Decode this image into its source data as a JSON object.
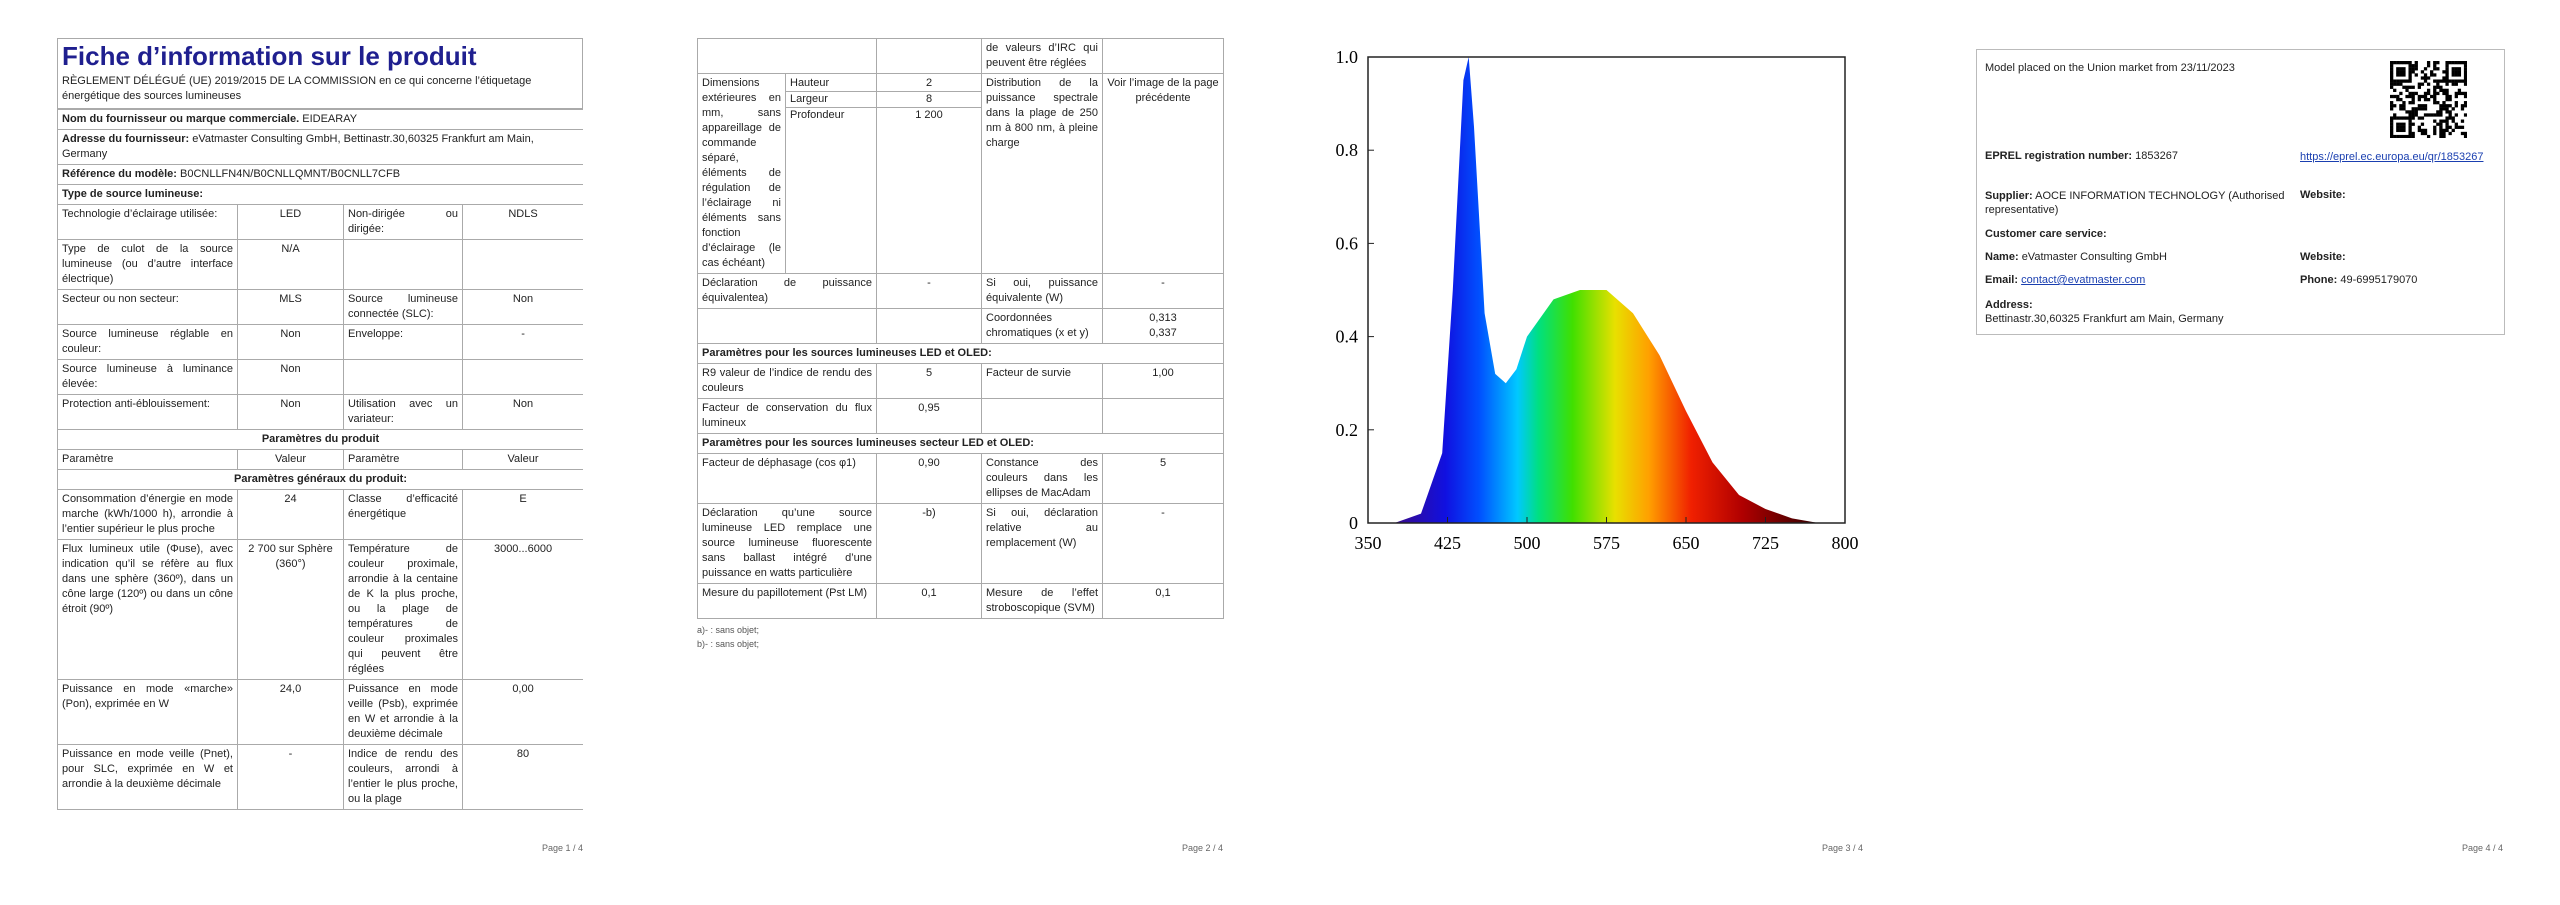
{
  "page1": {
    "title": "Fiche d’information sur le produit",
    "regulation": "RÈGLEMENT DÉLÉGUÉ (UE) 2019/2015 DE LA COMMISSION en ce qui concerne l’étiquetage énergétique des sources lumineuses",
    "table": [
      {
        "label": "Nom du fournisseur ou marque commerciale.",
        "value": "EIDEARAY"
      },
      {
        "label": "Adresse du fournisseur:",
        "value": "eVatmaster Consulting GmbH, Bettinastr.30,60325 Frankfurt am Main, Germany"
      },
      {
        "label": "Référence du modèle:",
        "value": "B0CNLLFN4N/B0CNLLQMNT/B0CNLL7CFB"
      },
      {
        "heading": "Type de source lumineuse:"
      },
      [
        "Technologie d’éclairage utilisée:",
        "LED",
        "Non-dirigée ou dirigée:",
        "NDLS"
      ],
      [
        "Type de culot de la source lumineuse (ou d’autre interface électrique)",
        "N/A",
        null,
        null
      ],
      [
        "Secteur ou non secteur:",
        "MLS",
        "Source lumineuse connectée (SLC):",
        "Non"
      ],
      [
        "Source lumineuse réglable en couleur:",
        "Non",
        "Enveloppe:",
        "-"
      ],
      [
        "Source lumineuse à luminance élevée:",
        "Non",
        null,
        null
      ],
      [
        "Protection anti-éblouissement:",
        "Non",
        "Utilisation avec un variateur:",
        "Non"
      ],
      {
        "center": "Paramètres du produit"
      },
      [
        "Paramètre",
        "Valeur",
        "Paramètre",
        "Valeur"
      ],
      {
        "center": "Paramètres généraux du produit:"
      },
      [
        "Consommation d’énergie en mode marche (kWh/1000 h), arrondie à l’entier supérieur le plus proche",
        "24",
        "Classe d’efficacité énergétique",
        "E"
      ],
      [
        "Flux lumineux utile (Φuse), avec indication qu’il se réfère au flux dans une sphère (360º), dans un cône large (120º) ou dans un cône étroit (90º)",
        "2 700 sur Sphère (360°)",
        "Température de couleur proximale, arrondie à la centaine de K la plus proche, ou la plage de températures de couleur proximales qui peuvent être réglées",
        "3000...6000"
      ],
      [
        "Puissance en mode «marche» (Pon), exprimée en W",
        "24,0",
        "Puissance en mode veille (Psb), exprimée en W et arrondie à la deuxième décimale",
        "0,00"
      ],
      [
        "Puissance en mode veille (Pnet), pour SLC, exprimée en W et arrondie à la deuxième décimale",
        "-",
        "Indice de rendu des couleurs, arrondi à l’entier le plus proche, ou la plage",
        "80"
      ]
    ],
    "footer": "Page 1 / 4"
  },
  "page2": {
    "table": [
      [
        null,
        null,
        "de valeurs d’IRC qui peuvent être réglées",
        null
      ],
      {
        "label": "Dimensions extérieures en mm, sans appareillage de commande séparé, éléments de régulation de l’éclairage ni éléments sans fonction d’éclairage (le cas échéant)",
        "dims": [
          [
            "Hauteur",
            "2"
          ],
          [
            "Largeur",
            "8"
          ],
          [
            "Profondeur",
            "1 200"
          ]
        ],
        "param": "Distribution de la puissance spectrale dans la plage de 250 nm à 800 nm, à pleine charge",
        "value": "Voir l’image de la page précédente"
      },
      [
        "Déclaration de puissance équivalentea)",
        "-",
        "Si oui, puissance équivalente (W)",
        "-"
      ],
      [
        null,
        null,
        "Coordonnées chromatiques (x et y)",
        [
          "0,313",
          "0,337"
        ]
      ],
      {
        "heading": "Paramètres pour les sources lumineuses LED et OLED:"
      },
      [
        "R9 valeur de l’indice de rendu des couleurs",
        "5",
        "Facteur de survie",
        "1,00"
      ],
      [
        "Facteur de conservation du flux lumineux",
        "0,95",
        null,
        null
      ],
      {
        "heading": "Paramètres pour les sources lumineuses secteur LED et OLED:"
      },
      [
        "Facteur de déphasage (cos φ1)",
        "0,90",
        "Constance des couleurs dans les ellipses de MacAdam",
        "5"
      ],
      [
        "Déclaration qu’une source lumineuse LED remplace une source lumineuse fluorescente sans ballast intégré d’une puissance en watts particulière",
        "-b)",
        "Si oui, déclaration relative au remplacement (W)",
        "-"
      ],
      [
        "Mesure du papillotement (Pst LM)",
        "0,1",
        "Mesure de l’effet stroboscopique (SVM)",
        "0,1"
      ]
    ],
    "footnotes": [
      "a)- : sans objet;",
      "b)- : sans objet;"
    ],
    "footer": "Page 2 / 4"
  },
  "chart_data": {
    "type": "area",
    "x": [
      375,
      400,
      420,
      430,
      440,
      445,
      450,
      460,
      470,
      480,
      490,
      500,
      525,
      550,
      575,
      600,
      625,
      650,
      675,
      700,
      725,
      750,
      775
    ],
    "values": [
      0,
      0.02,
      0.15,
      0.5,
      0.95,
      1.0,
      0.85,
      0.45,
      0.32,
      0.3,
      0.33,
      0.4,
      0.48,
      0.5,
      0.5,
      0.45,
      0.36,
      0.24,
      0.13,
      0.06,
      0.03,
      0.01,
      0
    ],
    "xlim": [
      350,
      800
    ],
    "ylim": [
      0,
      1
    ],
    "xticks": [
      350,
      425,
      500,
      575,
      650,
      725,
      800
    ],
    "yticks": [
      0,
      0.2,
      0.4,
      0.6,
      0.8,
      {
        "value": 1,
        "label": "1.0"
      }
    ]
  },
  "page3": {
    "footer": "Page 3 / 4"
  },
  "page4": {
    "placed": "Model placed on the Union market from 23/11/2023",
    "eprel_label": "EPREL registration number:",
    "eprel_value": "1853267",
    "eprel_link": "https://eprel.ec.europa.eu/qr/1853267",
    "supplier_label": "Supplier:",
    "supplier_value": "AOCE INFORMATION TECHNOLOGY (Authorised representative)",
    "website_label": "Website:",
    "customer_care": "Customer care service:",
    "name_label": "Name:",
    "name_value": "eVatmaster Consulting GmbH",
    "website2_label": "Website:",
    "email_label": "Email:",
    "email_value": "contact@evatmaster.com",
    "phone_label": "Phone:",
    "phone_value": "49-6995179070",
    "address_label": "Address:",
    "address_value": "Bettinastr.30,60325 Frankfurt am Main, Germany",
    "footer": "Page 4 / 4"
  }
}
